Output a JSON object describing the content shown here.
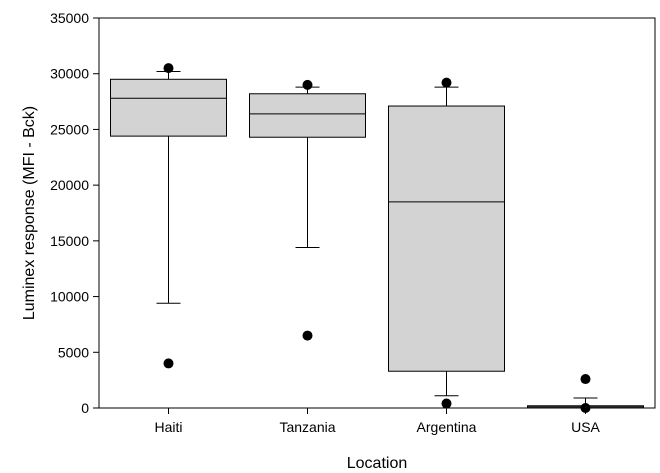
{
  "chart_data": {
    "type": "box",
    "xlabel": "Location",
    "ylabel": "Luminex response (MFI - Bck)",
    "ylim": [
      0,
      35000
    ],
    "yticks": [
      0,
      5000,
      10000,
      15000,
      20000,
      25000,
      30000,
      35000
    ],
    "categories": [
      "Haiti",
      "Tanzania",
      "Argentina",
      "USA"
    ],
    "boxes": [
      {
        "category": "Haiti",
        "whisker_low": 9400,
        "q1": 24400,
        "median": 27800,
        "q3": 29500,
        "whisker_high": 30200,
        "outliers": [
          30500,
          4000
        ]
      },
      {
        "category": "Tanzania",
        "whisker_low": 14400,
        "q1": 24300,
        "median": 26400,
        "q3": 28200,
        "whisker_high": 28800,
        "outliers": [
          29000,
          6500
        ]
      },
      {
        "category": "Argentina",
        "whisker_low": 1100,
        "q1": 3300,
        "median": 18500,
        "q3": 27100,
        "whisker_high": 28800,
        "outliers": [
          29200,
          400
        ]
      },
      {
        "category": "USA",
        "whisker_low": 0,
        "q1": 0,
        "median": 100,
        "q3": 200,
        "whisker_high": 900,
        "outliers": [
          2600,
          0
        ]
      }
    ],
    "box_fill": "#d3d3d3",
    "grid": false
  }
}
